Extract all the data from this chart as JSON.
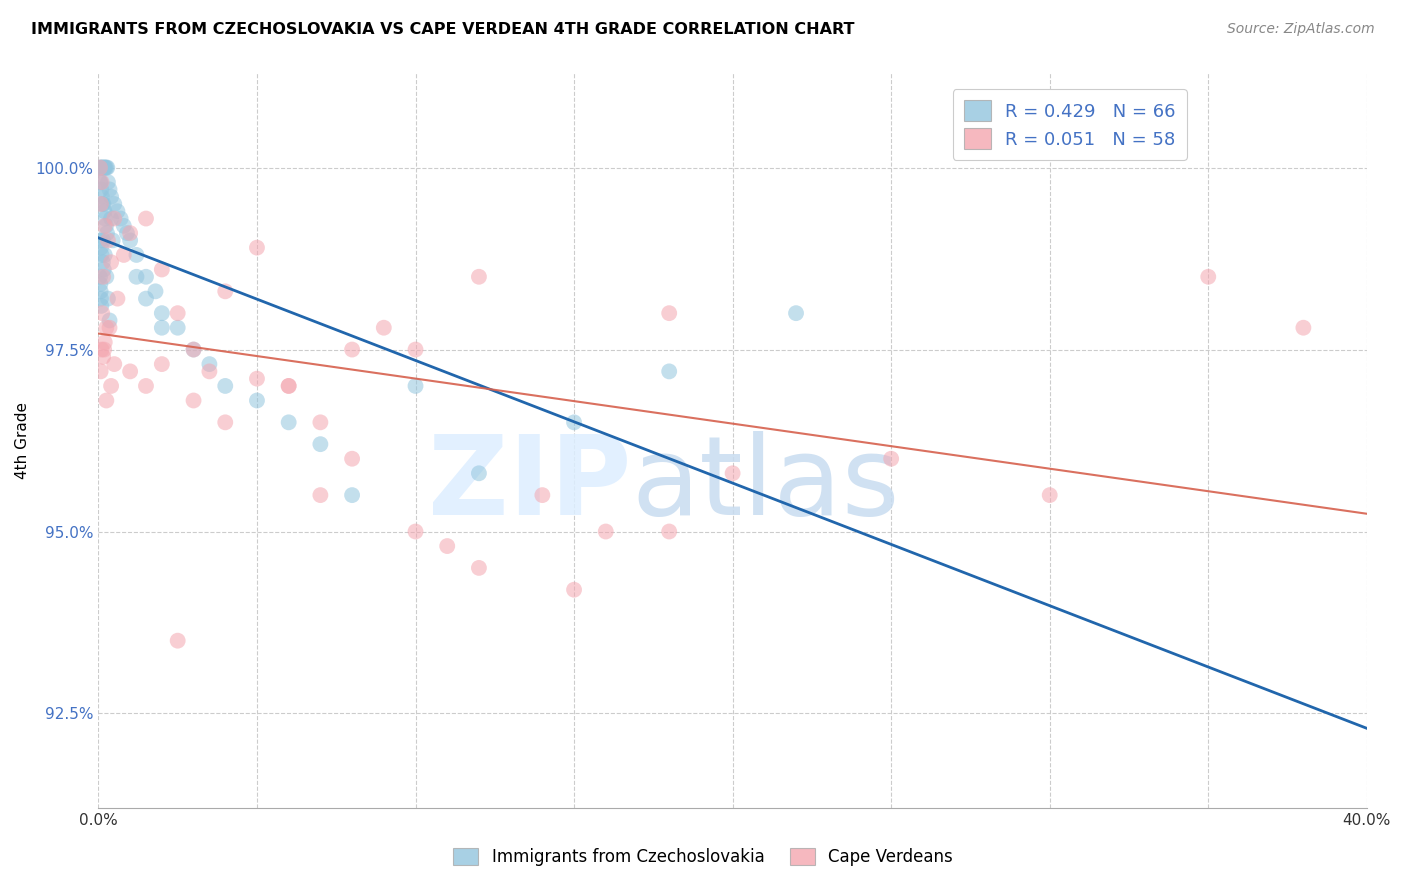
{
  "title": "IMMIGRANTS FROM CZECHOSLOVAKIA VS CAPE VERDEAN 4TH GRADE CORRELATION CHART",
  "source": "Source: ZipAtlas.com",
  "ylabel": "4th Grade",
  "ytick_values": [
    92.5,
    95.0,
    97.5,
    100.0
  ],
  "xlim": [
    0.0,
    40.0
  ],
  "ylim": [
    91.2,
    101.3
  ],
  "blue_R": 0.429,
  "blue_N": 66,
  "pink_R": 0.051,
  "pink_N": 58,
  "blue_color": "#92c5de",
  "pink_color": "#f4a6b0",
  "blue_line_color": "#2166ac",
  "pink_line_color": "#d6604d",
  "legend_label_blue": "Immigrants from Czechoslovakia",
  "legend_label_pink": "Cape Verdeans",
  "blue_x": [
    0.05,
    0.08,
    0.1,
    0.12,
    0.15,
    0.18,
    0.2,
    0.22,
    0.25,
    0.28,
    0.05,
    0.07,
    0.09,
    0.11,
    0.13,
    0.16,
    0.19,
    0.21,
    0.24,
    0.27,
    0.06,
    0.08,
    0.1,
    0.14,
    0.17,
    0.05,
    0.06,
    0.07,
    0.08,
    0.09,
    0.3,
    0.35,
    0.4,
    0.5,
    0.6,
    0.7,
    0.8,
    0.9,
    1.0,
    1.2,
    1.5,
    1.8,
    2.0,
    2.5,
    3.0,
    3.5,
    4.0,
    5.0,
    6.0,
    7.0,
    0.15,
    0.2,
    0.25,
    0.3,
    0.35,
    1.2,
    1.5,
    2.0,
    8.0,
    10.0,
    12.0,
    15.0,
    18.0,
    22.0,
    0.4,
    0.45
  ],
  "blue_y": [
    100.0,
    100.0,
    100.0,
    100.0,
    100.0,
    100.0,
    100.0,
    100.0,
    100.0,
    100.0,
    99.8,
    99.8,
    99.7,
    99.6,
    99.5,
    99.5,
    99.4,
    99.3,
    99.2,
    99.1,
    99.0,
    98.9,
    98.8,
    98.7,
    98.6,
    98.5,
    98.4,
    98.3,
    98.2,
    98.1,
    99.8,
    99.7,
    99.6,
    99.5,
    99.4,
    99.3,
    99.2,
    99.1,
    99.0,
    98.8,
    98.5,
    98.3,
    98.0,
    97.8,
    97.5,
    97.3,
    97.0,
    96.8,
    96.5,
    96.2,
    99.0,
    98.8,
    98.5,
    98.2,
    97.9,
    98.5,
    98.2,
    97.8,
    95.5,
    97.0,
    95.8,
    96.5,
    97.2,
    98.0,
    99.3,
    99.0
  ],
  "pink_x": [
    0.05,
    0.08,
    0.1,
    0.15,
    0.2,
    0.25,
    0.3,
    0.4,
    0.5,
    0.6,
    0.8,
    1.0,
    1.5,
    2.0,
    2.5,
    3.0,
    4.0,
    5.0,
    6.0,
    7.0,
    8.0,
    9.0,
    10.0,
    11.0,
    12.0,
    14.0,
    16.0,
    18.0,
    20.0,
    25.0,
    30.0,
    35.0,
    0.1,
    0.15,
    0.2,
    0.35,
    0.5,
    1.0,
    1.5,
    2.0,
    3.0,
    4.0,
    5.0,
    6.0,
    7.0,
    8.0,
    10.0,
    12.0,
    15.0,
    18.0,
    0.07,
    0.12,
    0.18,
    0.25,
    0.4,
    2.5,
    3.5,
    38.0
  ],
  "pink_y": [
    100.0,
    99.5,
    99.8,
    98.5,
    99.2,
    97.8,
    99.0,
    98.7,
    99.3,
    98.2,
    98.8,
    99.1,
    99.3,
    98.6,
    98.0,
    97.5,
    98.3,
    98.9,
    97.0,
    96.5,
    97.5,
    97.8,
    95.0,
    94.8,
    98.5,
    95.5,
    95.0,
    98.0,
    95.8,
    96.0,
    95.5,
    98.5,
    97.5,
    97.4,
    97.6,
    97.8,
    97.3,
    97.2,
    97.0,
    97.3,
    96.8,
    96.5,
    97.1,
    97.0,
    95.5,
    96.0,
    97.5,
    94.5,
    94.2,
    95.0,
    97.2,
    98.0,
    97.5,
    96.8,
    97.0,
    93.5,
    97.2,
    97.8
  ]
}
